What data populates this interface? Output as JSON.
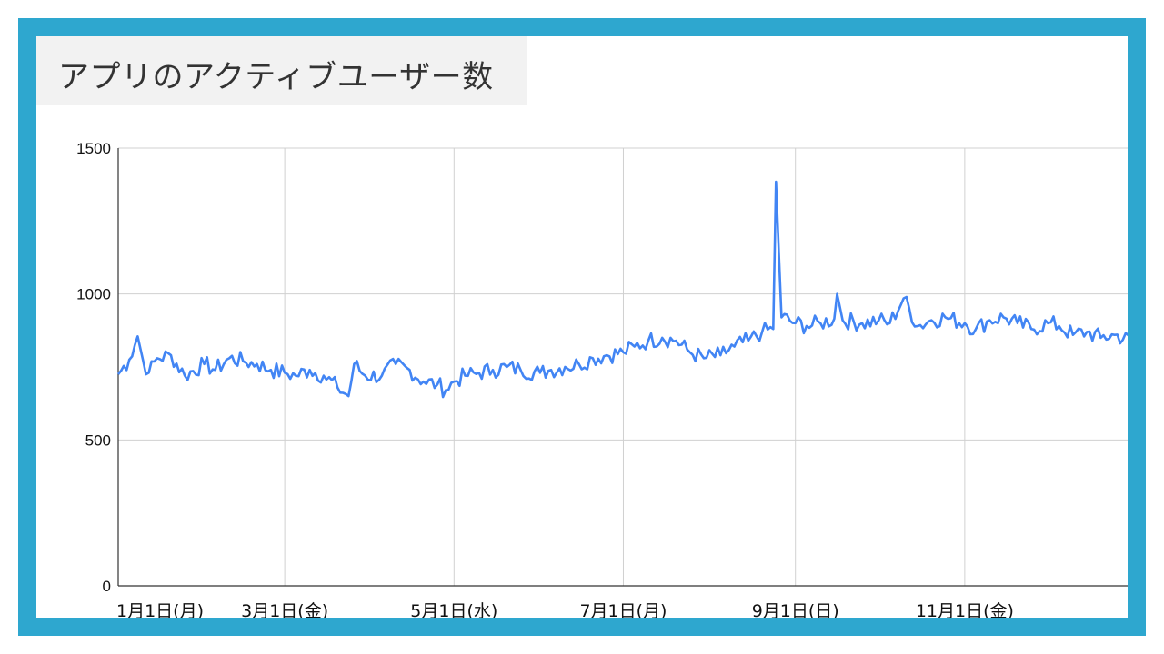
{
  "title": "アプリのアクティブユーザー数",
  "colors": {
    "frame": "#2ea7cf",
    "series": "#4285f4",
    "grid": "#d0d0d0",
    "title_bg": "#f2f2f2"
  },
  "chart_data": {
    "type": "line",
    "title": "アプリのアクティブユーザー数",
    "xlabel": "",
    "ylabel": "",
    "xlim": [
      0,
      365
    ],
    "ylim": [
      0,
      1500
    ],
    "grid": true,
    "legend": "none",
    "y_ticks": [
      {
        "value": 0,
        "label": "0"
      },
      {
        "value": 500,
        "label": "500"
      },
      {
        "value": 1000,
        "label": "1000"
      },
      {
        "value": 1500,
        "label": "1500"
      }
    ],
    "x_ticks": [
      {
        "label": "1月1日(月)",
        "value": "2024-01-01"
      },
      {
        "label": "3月1日(金)",
        "value": "2024-03-01"
      },
      {
        "label": "5月1日(水)",
        "value": "2024-05-01"
      },
      {
        "label": "7月1日(月)",
        "value": "2024-07-01"
      },
      {
        "label": "9月1日(日)",
        "value": "2024-09-01"
      },
      {
        "label": "11月1日(金)",
        "value": "2024-11-01"
      }
    ],
    "series": [
      {
        "points": [
          [
            "2024-01-01",
            725
          ],
          [
            "2024-01-05",
            775
          ],
          [
            "2024-01-08",
            855
          ],
          [
            "2024-01-10",
            770
          ],
          [
            "2024-01-12",
            730
          ],
          [
            "2024-01-15",
            780
          ],
          [
            "2024-01-20",
            790
          ],
          [
            "2024-01-25",
            720
          ],
          [
            "2024-02-01",
            760
          ],
          [
            "2024-02-05",
            740
          ],
          [
            "2024-02-10",
            780
          ],
          [
            "2024-02-15",
            770
          ],
          [
            "2024-02-20",
            760
          ],
          [
            "2024-02-25",
            740
          ],
          [
            "2024-03-01",
            730
          ],
          [
            "2024-03-05",
            720
          ],
          [
            "2024-03-10",
            740
          ],
          [
            "2024-03-15",
            720
          ],
          [
            "2024-03-20",
            680
          ],
          [
            "2024-03-24",
            650
          ],
          [
            "2024-03-26",
            760
          ],
          [
            "2024-03-30",
            720
          ],
          [
            "2024-04-05",
            720
          ],
          [
            "2024-04-10",
            760
          ],
          [
            "2024-04-15",
            740
          ],
          [
            "2024-04-20",
            700
          ],
          [
            "2024-04-25",
            690
          ],
          [
            "2024-04-28",
            670
          ],
          [
            "2024-05-01",
            700
          ],
          [
            "2024-05-05",
            720
          ],
          [
            "2024-05-10",
            730
          ],
          [
            "2024-05-15",
            740
          ],
          [
            "2024-05-20",
            750
          ],
          [
            "2024-05-25",
            740
          ],
          [
            "2024-06-01",
            730
          ],
          [
            "2024-06-05",
            740
          ],
          [
            "2024-06-10",
            750
          ],
          [
            "2024-06-15",
            760
          ],
          [
            "2024-06-20",
            780
          ],
          [
            "2024-06-25",
            790
          ],
          [
            "2024-07-01",
            800
          ],
          [
            "2024-07-05",
            820
          ],
          [
            "2024-07-10",
            840
          ],
          [
            "2024-07-15",
            850
          ],
          [
            "2024-07-20",
            840
          ],
          [
            "2024-07-25",
            800
          ],
          [
            "2024-07-30",
            780
          ],
          [
            "2024-08-05",
            790
          ],
          [
            "2024-08-10",
            820
          ],
          [
            "2024-08-15",
            840
          ],
          [
            "2024-08-20",
            870
          ],
          [
            "2024-08-24",
            880
          ],
          [
            "2024-08-25",
            1385
          ],
          [
            "2024-08-27",
            920
          ],
          [
            "2024-09-01",
            900
          ],
          [
            "2024-09-05",
            890
          ],
          [
            "2024-09-10",
            900
          ],
          [
            "2024-09-15",
            915
          ],
          [
            "2024-09-16",
            1000
          ],
          [
            "2024-09-18",
            910
          ],
          [
            "2024-09-25",
            900
          ],
          [
            "2024-10-01",
            910
          ],
          [
            "2024-10-05",
            900
          ],
          [
            "2024-10-10",
            985
          ],
          [
            "2024-10-15",
            890
          ],
          [
            "2024-10-20",
            910
          ],
          [
            "2024-10-25",
            920
          ],
          [
            "2024-11-01",
            900
          ],
          [
            "2024-11-05",
            880
          ],
          [
            "2024-11-10",
            910
          ],
          [
            "2024-11-15",
            920
          ],
          [
            "2024-11-20",
            900
          ],
          [
            "2024-11-25",
            880
          ],
          [
            "2024-12-01",
            900
          ],
          [
            "2024-12-05",
            890
          ],
          [
            "2024-12-10",
            860
          ],
          [
            "2024-12-15",
            870
          ],
          [
            "2024-12-20",
            850
          ],
          [
            "2024-12-25",
            860
          ],
          [
            "2024-12-31",
            840
          ]
        ]
      }
    ]
  }
}
